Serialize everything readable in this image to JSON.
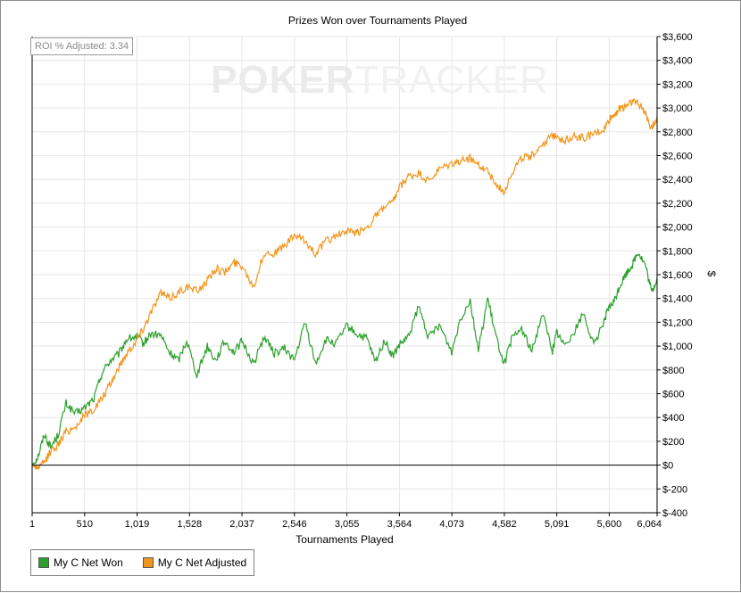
{
  "watermark": {
    "part_a": "POKER",
    "part_b": "TRACKER"
  },
  "roi_label": "ROI % Adjusted: 3.34",
  "colors": {
    "net_won": "#2ca02c",
    "net_adjusted": "#f0961e",
    "grid": "#e6e6e6"
  },
  "chart_data": {
    "type": "line",
    "title": "Prizes Won over Tournaments Played",
    "xlabel": "Tournaments Played",
    "ylabel": "$",
    "xlim": [
      1,
      6064
    ],
    "ylim": [
      -400,
      3600
    ],
    "x_ticks": [
      "1",
      "510",
      "1,019",
      "1,528",
      "2,037",
      "2,546",
      "3,055",
      "3,564",
      "4,073",
      "4,582",
      "5,091",
      "5,600",
      "6,064"
    ],
    "y_ticks": [
      "$3,600",
      "$3,400",
      "$3,200",
      "$3,000",
      "$2,800",
      "$2,600",
      "$2,400",
      "$2,200",
      "$2,000",
      "$1,800",
      "$1,600",
      "$1,400",
      "$1,200",
      "$1,000",
      "$800",
      "$600",
      "$400",
      "$200",
      "$0",
      "$-200",
      "$-400"
    ],
    "y_tick_values": [
      3600,
      3400,
      3200,
      3000,
      2800,
      2600,
      2400,
      2200,
      2000,
      1800,
      1600,
      1400,
      1200,
      1000,
      800,
      600,
      400,
      200,
      0,
      -200,
      -400
    ],
    "x_tick_values": [
      1,
      510,
      1019,
      1528,
      2037,
      2546,
      3055,
      3564,
      4073,
      4582,
      5091,
      5600,
      6064
    ],
    "grid": true,
    "legend_position": "bottom-left",
    "series": [
      {
        "name": "My C Net Won",
        "x": [
          1,
          60,
          120,
          180,
          250,
          330,
          420,
          510,
          600,
          680,
          760,
          840,
          920,
          1019,
          1080,
          1150,
          1250,
          1330,
          1420,
          1500,
          1600,
          1700,
          1780,
          1870,
          1960,
          2037,
          2150,
          2250,
          2350,
          2450,
          2546,
          2650,
          2750,
          2850,
          2950,
          3055,
          3150,
          3250,
          3330,
          3420,
          3500,
          3564,
          3650,
          3750,
          3850,
          3950,
          4073,
          4150,
          4250,
          4330,
          4420,
          4500,
          4582,
          4650,
          4750,
          4850,
          4950,
          5050,
          5091,
          5150,
          5250,
          5350,
          5450,
          5550,
          5600,
          5650,
          5700,
          5760,
          5820,
          5880,
          5950,
          6010,
          6064
        ],
        "y": [
          0,
          80,
          260,
          150,
          250,
          520,
          430,
          480,
          560,
          780,
          880,
          930,
          1060,
          1080,
          1020,
          1100,
          1090,
          950,
          880,
          1050,
          760,
          1000,
          880,
          1040,
          950,
          1040,
          850,
          1080,
          940,
          980,
          880,
          1200,
          850,
          1050,
          1020,
          1170,
          1100,
          1060,
          860,
          1050,
          910,
          1010,
          1070,
          1330,
          1070,
          1180,
          950,
          1220,
          1390,
          960,
          1400,
          1080,
          850,
          1050,
          1150,
          950,
          1280,
          960,
          1120,
          1020,
          1100,
          1280,
          1000,
          1220,
          1320,
          1380,
          1500,
          1600,
          1680,
          1790,
          1680,
          1450,
          1570
        ]
      },
      {
        "name": "My C Net Adjusted",
        "x": [
          1,
          60,
          120,
          180,
          250,
          330,
          420,
          510,
          600,
          680,
          760,
          840,
          920,
          1019,
          1080,
          1150,
          1250,
          1330,
          1420,
          1500,
          1600,
          1700,
          1780,
          1870,
          1960,
          2037,
          2150,
          2250,
          2350,
          2450,
          2546,
          2650,
          2750,
          2850,
          2950,
          3055,
          3150,
          3250,
          3330,
          3420,
          3500,
          3564,
          3650,
          3750,
          3850,
          3950,
          4073,
          4150,
          4250,
          4330,
          4420,
          4500,
          4582,
          4650,
          4750,
          4850,
          4950,
          5050,
          5091,
          5150,
          5250,
          5350,
          5450,
          5550,
          5600,
          5650,
          5700,
          5760,
          5820,
          5880,
          5950,
          6010,
          6064
        ],
        "y": [
          0,
          -20,
          20,
          120,
          170,
          280,
          320,
          420,
          470,
          560,
          680,
          820,
          940,
          1060,
          1150,
          1280,
          1450,
          1400,
          1450,
          1500,
          1460,
          1550,
          1650,
          1620,
          1700,
          1680,
          1500,
          1780,
          1780,
          1840,
          1930,
          1880,
          1780,
          1880,
          1930,
          1960,
          1950,
          2000,
          2080,
          2170,
          2200,
          2330,
          2420,
          2450,
          2380,
          2480,
          2530,
          2550,
          2580,
          2520,
          2480,
          2350,
          2300,
          2450,
          2580,
          2600,
          2700,
          2760,
          2780,
          2720,
          2760,
          2750,
          2780,
          2820,
          2900,
          2950,
          2990,
          3020,
          3060,
          3040,
          2960,
          2830,
          2920
        ]
      }
    ]
  }
}
